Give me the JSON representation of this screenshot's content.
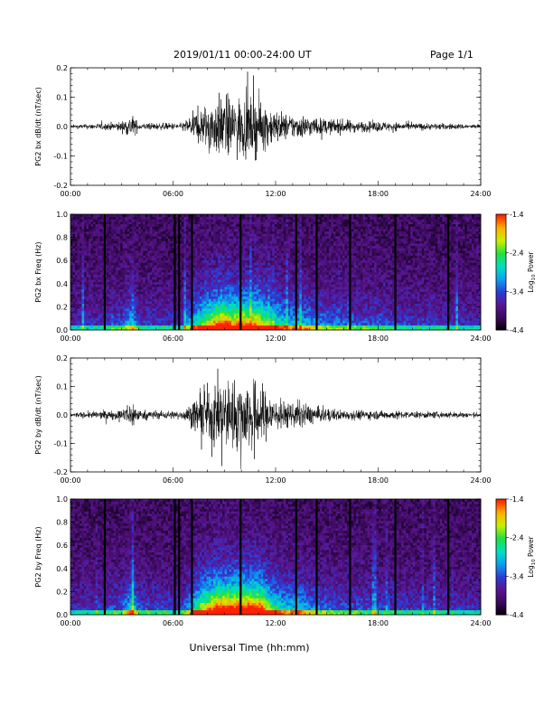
{
  "header": {
    "date_range": "2019/01/11  00:00-24:00 UT",
    "page": "Page 1/1"
  },
  "xaxis": {
    "label": "Universal Time (hh:mm)",
    "ticks": [
      "00:00",
      "06:00",
      "12:00",
      "18:00",
      "24:00"
    ],
    "ticks_hours": [
      0,
      6,
      12,
      18,
      24
    ],
    "range_hours": [
      0,
      24
    ]
  },
  "colormap": {
    "stops": [
      "#000000",
      "#3a0a5a",
      "#5a1590",
      "#2a3cd8",
      "#0aa0f0",
      "#00e0c0",
      "#20e040",
      "#c8f000",
      "#ffb000",
      "#ff2000"
    ]
  },
  "chart_data": [
    {
      "type": "line",
      "ylabel": "PG2 bx dB/dt (nT/sec)",
      "ylim": [
        -0.2,
        0.2
      ],
      "yticks": [
        "0.2",
        "0.1",
        "0.0",
        "-0.1",
        "-0.2"
      ],
      "ytick_values": [
        0.2,
        0.1,
        0.0,
        -0.1,
        -0.2
      ],
      "series": [
        {
          "x_hours": [
            0,
            1,
            2,
            3,
            3.6,
            4,
            5,
            6,
            6.5,
            7,
            7.5,
            8,
            8.5,
            9,
            9.5,
            10,
            10.5,
            11,
            11.5,
            12,
            12.5,
            13,
            13.5,
            14,
            14.5,
            15,
            16,
            17,
            18,
            19,
            20,
            21,
            22,
            23,
            24
          ],
          "amplitude": [
            0.01,
            0.015,
            0.02,
            0.03,
            0.07,
            0.02,
            0.02,
            0.02,
            0.02,
            0.06,
            0.1,
            0.14,
            0.17,
            0.19,
            0.16,
            0.18,
            0.16,
            0.17,
            0.12,
            0.1,
            0.08,
            0.07,
            0.07,
            0.06,
            0.05,
            0.045,
            0.04,
            0.03,
            0.03,
            0.025,
            0.02,
            0.02,
            0.018,
            0.015,
            0.012
          ]
        }
      ]
    },
    {
      "type": "heatmap",
      "ylabel": "PG2 bx Freq (Hz)",
      "ylim": [
        0.0,
        1.0
      ],
      "yticks": [
        "1.0",
        "0.8",
        "0.6",
        "0.4",
        "0.2",
        "0.0"
      ],
      "ytick_values": [
        1.0,
        0.8,
        0.6,
        0.4,
        0.2,
        0.0
      ],
      "colorbar": {
        "label": "Log10 Power",
        "label_main": "Log",
        "label_sub": "10",
        "label_rest": " Power",
        "ticks": [
          "-1.4",
          "-2.4",
          "-3.4",
          "-4.4"
        ],
        "tick_values": [
          -1.4,
          -2.4,
          -3.4,
          -4.4
        ],
        "range": [
          -4.4,
          -1.4
        ]
      },
      "gaps_hours": [
        2.0,
        6.1,
        6.35,
        7.1,
        9.95,
        13.2,
        14.4,
        16.35,
        19.0,
        22.1
      ]
    },
    {
      "type": "line",
      "ylabel": "PG2 by dB/dt (nT/sec)",
      "ylim": [
        -0.2,
        0.2
      ],
      "yticks": [
        "0.2",
        "0.1",
        "0.0",
        "-0.1",
        "-0.2"
      ],
      "ytick_values": [
        0.2,
        0.1,
        0.0,
        -0.1,
        -0.2
      ],
      "series": [
        {
          "x_hours": [
            0,
            1,
            2,
            3,
            3.6,
            4,
            5,
            6,
            6.5,
            7,
            7.5,
            8,
            8.5,
            9,
            9.5,
            10,
            10.5,
            11,
            11.5,
            12,
            12.5,
            13,
            13.5,
            14,
            14.5,
            15,
            16,
            17,
            18,
            19,
            20,
            21,
            22,
            23,
            24
          ],
          "amplitude": [
            0.012,
            0.02,
            0.025,
            0.03,
            0.09,
            0.03,
            0.025,
            0.025,
            0.025,
            0.06,
            0.12,
            0.16,
            0.2,
            0.22,
            0.2,
            0.22,
            0.2,
            0.21,
            0.14,
            0.1,
            0.08,
            0.07,
            0.08,
            0.06,
            0.045,
            0.04,
            0.03,
            0.03,
            0.025,
            0.025,
            0.02,
            0.02,
            0.02,
            0.018,
            0.015
          ]
        }
      ]
    },
    {
      "type": "heatmap",
      "ylabel": "PG2 by Freq (Hz)",
      "ylim": [
        0.0,
        1.0
      ],
      "yticks": [
        "1.0",
        "0.8",
        "0.6",
        "0.4",
        "0.2",
        "0.0"
      ],
      "ytick_values": [
        1.0,
        0.8,
        0.6,
        0.4,
        0.2,
        0.0
      ],
      "colorbar": {
        "label": "Log10 Power",
        "label_main": "Log",
        "label_sub": "10",
        "label_rest": " Power",
        "ticks": [
          "-1.4",
          "-2.4",
          "-3.4",
          "-4.4"
        ],
        "tick_values": [
          -1.4,
          -2.4,
          -3.4,
          -4.4
        ],
        "range": [
          -4.4,
          -1.4
        ]
      },
      "gaps_hours": [
        2.0,
        6.1,
        6.35,
        7.1,
        9.95,
        13.2,
        14.4,
        16.35,
        19.0,
        22.1
      ]
    }
  ]
}
